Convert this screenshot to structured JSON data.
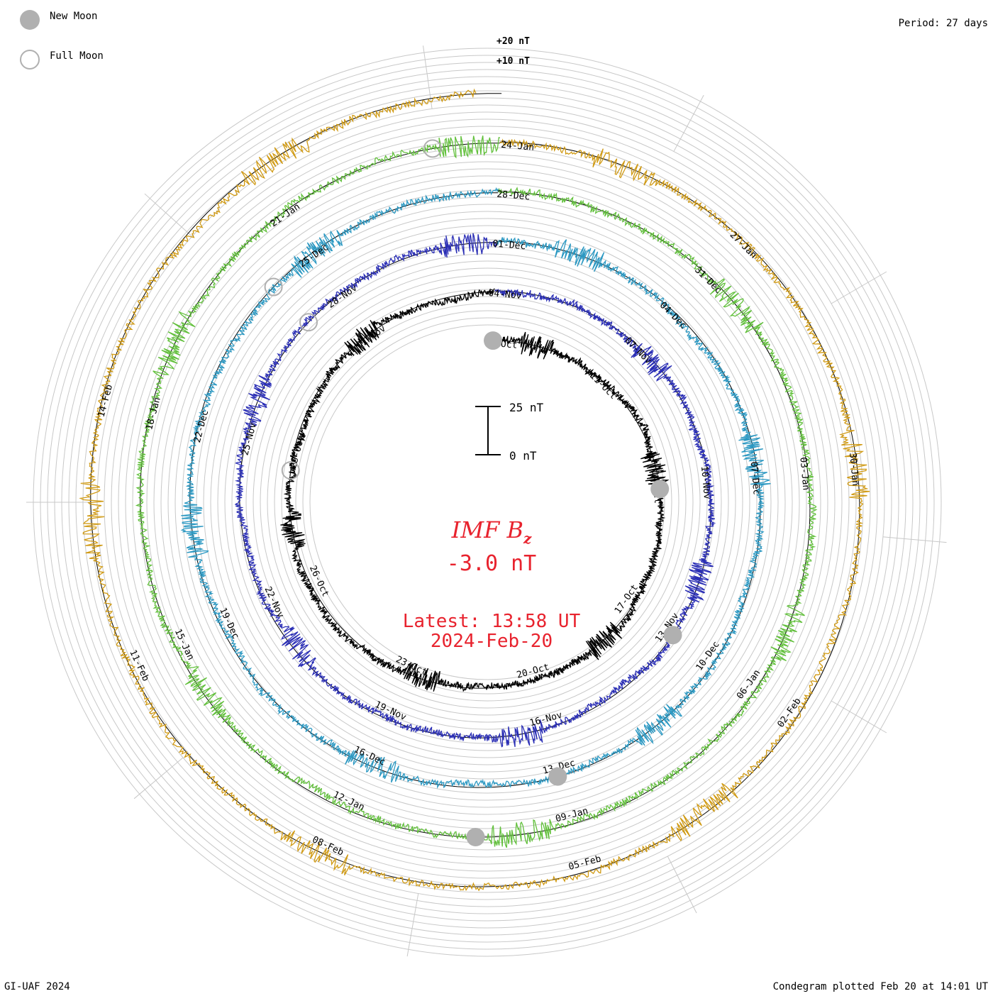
{
  "chart_data": {
    "type": "line",
    "subtype": "polar-condegram",
    "title": "IMF Bz",
    "title_main": "IMF B",
    "title_sub": "z",
    "current_value": "-3.0 nT",
    "latest_time": "Latest: 13:58 UT",
    "latest_date": "2024-Feb-20",
    "period": "Period: 27 days",
    "credit": "GI-UAF 2024",
    "plotted": "Condegram plotted Feb 20 at 14:01 UT",
    "legend": {
      "new_moon": "New Moon",
      "full_moon": "Full Moon"
    },
    "scale_bar": {
      "top": "25 nT",
      "bottom": "0 nT"
    },
    "ring_scale": {
      "plus20": "+20 nT",
      "plus10": "+10 nT"
    },
    "units": "nT",
    "rotations": [
      {
        "name": "rotation 1",
        "start": "08-Oct",
        "color": "#000000",
        "dates": [
          "08-Oct",
          "11-Oct",
          "14-Oct",
          "17-Oct",
          "20-Oct",
          "23-Oct",
          "26-Oct",
          "29-Oct",
          "01-Nov"
        ]
      },
      {
        "name": "rotation 2",
        "start": "04-Nov",
        "color": "#2a2eb5",
        "dates": [
          "04-Nov",
          "07-Nov",
          "10-Nov",
          "13-Nov",
          "16-Nov",
          "19-Nov",
          "22-Nov",
          "25-Nov",
          "28-Nov"
        ]
      },
      {
        "name": "rotation 3",
        "start": "01-Dec",
        "color": "#2b98c2",
        "dates": [
          "01-Dec",
          "04-Dec",
          "07-Dec",
          "10-Dec",
          "13-Dec",
          "16-Dec",
          "19-Dec",
          "22-Dec",
          "25-Dec"
        ]
      },
      {
        "name": "rotation 4",
        "start": "28-Dec",
        "color": "#62c03c",
        "dates": [
          "28-Dec",
          "31-Dec",
          "03-Jan",
          "06-Jan",
          "09-Jan",
          "12-Jan",
          "15-Jan",
          "18-Jan",
          "21-Jan"
        ]
      },
      {
        "name": "rotation 5",
        "start": "24-Jan",
        "color": "#d09a14",
        "dates": [
          "24-Jan",
          "27-Jan",
          "30-Jan",
          "02-Feb",
          "05-Feb",
          "08-Feb",
          "11-Feb",
          "14-Feb"
        ]
      }
    ],
    "moon_markers": [
      {
        "type": "new",
        "date": "14-Oct"
      },
      {
        "type": "new",
        "date": "13-Nov"
      },
      {
        "type": "new",
        "date": "13-Dec"
      },
      {
        "type": "new",
        "date": "11-Jan"
      },
      {
        "type": "new",
        "date": "10-Feb"
      },
      {
        "type": "full",
        "date": "28-Oct"
      },
      {
        "type": "full",
        "date": "27-Nov"
      },
      {
        "type": "full",
        "date": "26-Dec"
      },
      {
        "type": "full",
        "date": "25-Jan"
      }
    ],
    "colors": {
      "text_red": "#e8232e",
      "grid": "#c8c8c8",
      "moon": "#b0b0b0"
    }
  }
}
